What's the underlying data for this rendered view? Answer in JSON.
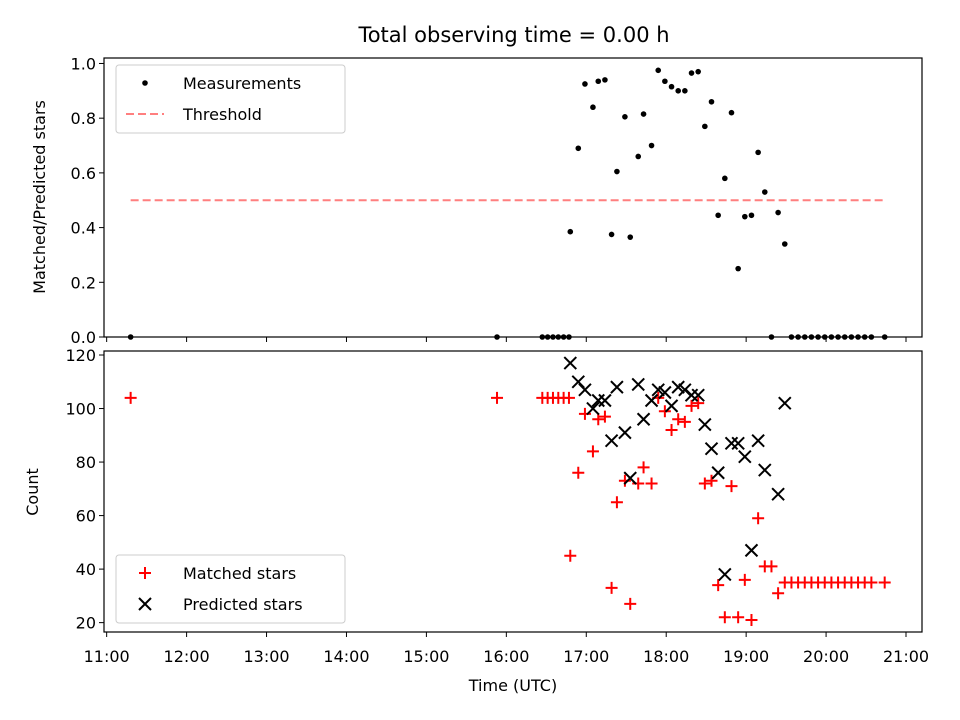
{
  "chart_data": {
    "type": "scatter",
    "title": "Total observing time = 0.00 h",
    "xlabel": "Time (UTC)",
    "x_ticks": [
      "11:00",
      "12:00",
      "13:00",
      "14:00",
      "15:00",
      "16:00",
      "17:00",
      "18:00",
      "19:00",
      "20:00",
      "21:00"
    ],
    "xlim": [
      "10:58",
      "21:12"
    ],
    "panels": [
      {
        "ylabel": "Matched/Predicted stars",
        "ylim": [
          0,
          1.02
        ],
        "y_ticks": [
          "0.0",
          "0.2",
          "0.4",
          "0.6",
          "0.8",
          "1.0"
        ],
        "legend_position": "upper-left",
        "series": [
          {
            "name": "Measurements",
            "marker": "dot",
            "color": "#000000",
            "points": [
              [
                "11:18",
                0
              ],
              [
                "15:53",
                0
              ],
              [
                "16:27",
                0
              ],
              [
                "16:31",
                0
              ],
              [
                "16:35",
                0
              ],
              [
                "16:39",
                0
              ],
              [
                "16:43",
                0
              ],
              [
                "16:47",
                0
              ],
              [
                "16:48",
                0.385
              ],
              [
                "16:54",
                0.69
              ],
              [
                "16:59",
                0.925
              ],
              [
                "17:05",
                0.84
              ],
              [
                "17:09",
                0.935
              ],
              [
                "17:14",
                0.94
              ],
              [
                "17:19",
                0.375
              ],
              [
                "17:23",
                0.605
              ],
              [
                "17:29",
                0.805
              ],
              [
                "17:33",
                0.365
              ],
              [
                "17:39",
                0.66
              ],
              [
                "17:43",
                0.815
              ],
              [
                "17:49",
                0.7
              ],
              [
                "17:54",
                0.975
              ],
              [
                "17:59",
                0.935
              ],
              [
                "18:04",
                0.915
              ],
              [
                "18:09",
                0.9
              ],
              [
                "18:14",
                0.9
              ],
              [
                "18:19",
                0.965
              ],
              [
                "18:24",
                0.97
              ],
              [
                "18:29",
                0.77
              ],
              [
                "18:34",
                0.86
              ],
              [
                "18:39",
                0.445
              ],
              [
                "18:44",
                0.58
              ],
              [
                "18:49",
                0.82
              ],
              [
                "18:54",
                0.25
              ],
              [
                "18:59",
                0.44
              ],
              [
                "19:04",
                0.445
              ],
              [
                "19:09",
                0.675
              ],
              [
                "19:14",
                0.53
              ],
              [
                "19:19",
                0
              ],
              [
                "19:24",
                0.455
              ],
              [
                "19:29",
                0.34
              ],
              [
                "19:34",
                0
              ],
              [
                "19:39",
                0
              ],
              [
                "19:44",
                0
              ],
              [
                "19:49",
                0
              ],
              [
                "19:54",
                0
              ],
              [
                "19:59",
                0
              ],
              [
                "20:04",
                0
              ],
              [
                "20:09",
                0
              ],
              [
                "20:14",
                0
              ],
              [
                "20:19",
                0
              ],
              [
                "20:24",
                0
              ],
              [
                "20:29",
                0
              ],
              [
                "20:34",
                0
              ],
              [
                "20:44",
                0
              ]
            ]
          },
          {
            "name": "Threshold",
            "marker": "dashed-line",
            "color": "#ff7f7f",
            "points": [
              [
                "11:18",
                0.5
              ],
              [
                "20:44",
                0.5
              ]
            ]
          }
        ]
      },
      {
        "ylabel": "Count",
        "ylim": [
          16.5,
          121.5
        ],
        "y_ticks": [
          "20",
          "40",
          "60",
          "80",
          "100",
          "120"
        ],
        "legend_position": "lower-left",
        "series": [
          {
            "name": "Matched stars",
            "marker": "plus",
            "color": "#ff0000",
            "points": [
              [
                "11:18",
                104
              ],
              [
                "15:53",
                104
              ],
              [
                "16:27",
                104
              ],
              [
                "16:31",
                104
              ],
              [
                "16:35",
                104
              ],
              [
                "16:39",
                104
              ],
              [
                "16:43",
                104
              ],
              [
                "16:47",
                104
              ],
              [
                "16:48",
                45
              ],
              [
                "16:54",
                76
              ],
              [
                "16:59",
                98
              ],
              [
                "17:05",
                84
              ],
              [
                "17:09",
                96
              ],
              [
                "17:14",
                97
              ],
              [
                "17:19",
                33
              ],
              [
                "17:23",
                65
              ],
              [
                "17:29",
                73
              ],
              [
                "17:33",
                27
              ],
              [
                "17:39",
                72
              ],
              [
                "17:43",
                78
              ],
              [
                "17:49",
                72
              ],
              [
                "17:54",
                104
              ],
              [
                "17:59",
                99
              ],
              [
                "18:04",
                92
              ],
              [
                "18:09",
                96
              ],
              [
                "18:14",
                95
              ],
              [
                "18:19",
                101
              ],
              [
                "18:24",
                102
              ],
              [
                "18:29",
                72
              ],
              [
                "18:34",
                73
              ],
              [
                "18:39",
                34
              ],
              [
                "18:44",
                22
              ],
              [
                "18:49",
                71
              ],
              [
                "18:54",
                22
              ],
              [
                "18:59",
                36
              ],
              [
                "19:04",
                21
              ],
              [
                "19:09",
                59
              ],
              [
                "19:14",
                41
              ],
              [
                "19:19",
                41
              ],
              [
                "19:24",
                31
              ],
              [
                "19:29",
                35
              ],
              [
                "19:34",
                35
              ],
              [
                "19:39",
                35
              ],
              [
                "19:44",
                35
              ],
              [
                "19:49",
                35
              ],
              [
                "19:54",
                35
              ],
              [
                "19:59",
                35
              ],
              [
                "20:04",
                35
              ],
              [
                "20:09",
                35
              ],
              [
                "20:14",
                35
              ],
              [
                "20:19",
                35
              ],
              [
                "20:24",
                35
              ],
              [
                "20:29",
                35
              ],
              [
                "20:34",
                35
              ],
              [
                "20:44",
                35
              ]
            ]
          },
          {
            "name": "Predicted stars",
            "marker": "x",
            "color": "#000000",
            "points": [
              [
                "16:48",
                117
              ],
              [
                "16:54",
                110
              ],
              [
                "16:59",
                107
              ],
              [
                "17:05",
                100
              ],
              [
                "17:09",
                103
              ],
              [
                "17:14",
                103
              ],
              [
                "17:19",
                88
              ],
              [
                "17:23",
                108
              ],
              [
                "17:29",
                91
              ],
              [
                "17:33",
                74
              ],
              [
                "17:39",
                109
              ],
              [
                "17:43",
                96
              ],
              [
                "17:49",
                103
              ],
              [
                "17:54",
                107
              ],
              [
                "17:59",
                106
              ],
              [
                "18:04",
                101
              ],
              [
                "18:09",
                108
              ],
              [
                "18:14",
                107
              ],
              [
                "18:19",
                105
              ],
              [
                "18:24",
                105
              ],
              [
                "18:29",
                94
              ],
              [
                "18:34",
                85
              ],
              [
                "18:39",
                76
              ],
              [
                "18:44",
                38
              ],
              [
                "18:49",
                87
              ],
              [
                "18:54",
                87
              ],
              [
                "18:59",
                82
              ],
              [
                "19:04",
                47
              ],
              [
                "19:09",
                88
              ],
              [
                "19:14",
                77
              ],
              [
                "19:24",
                68
              ],
              [
                "19:29",
                102
              ]
            ]
          }
        ]
      }
    ]
  }
}
